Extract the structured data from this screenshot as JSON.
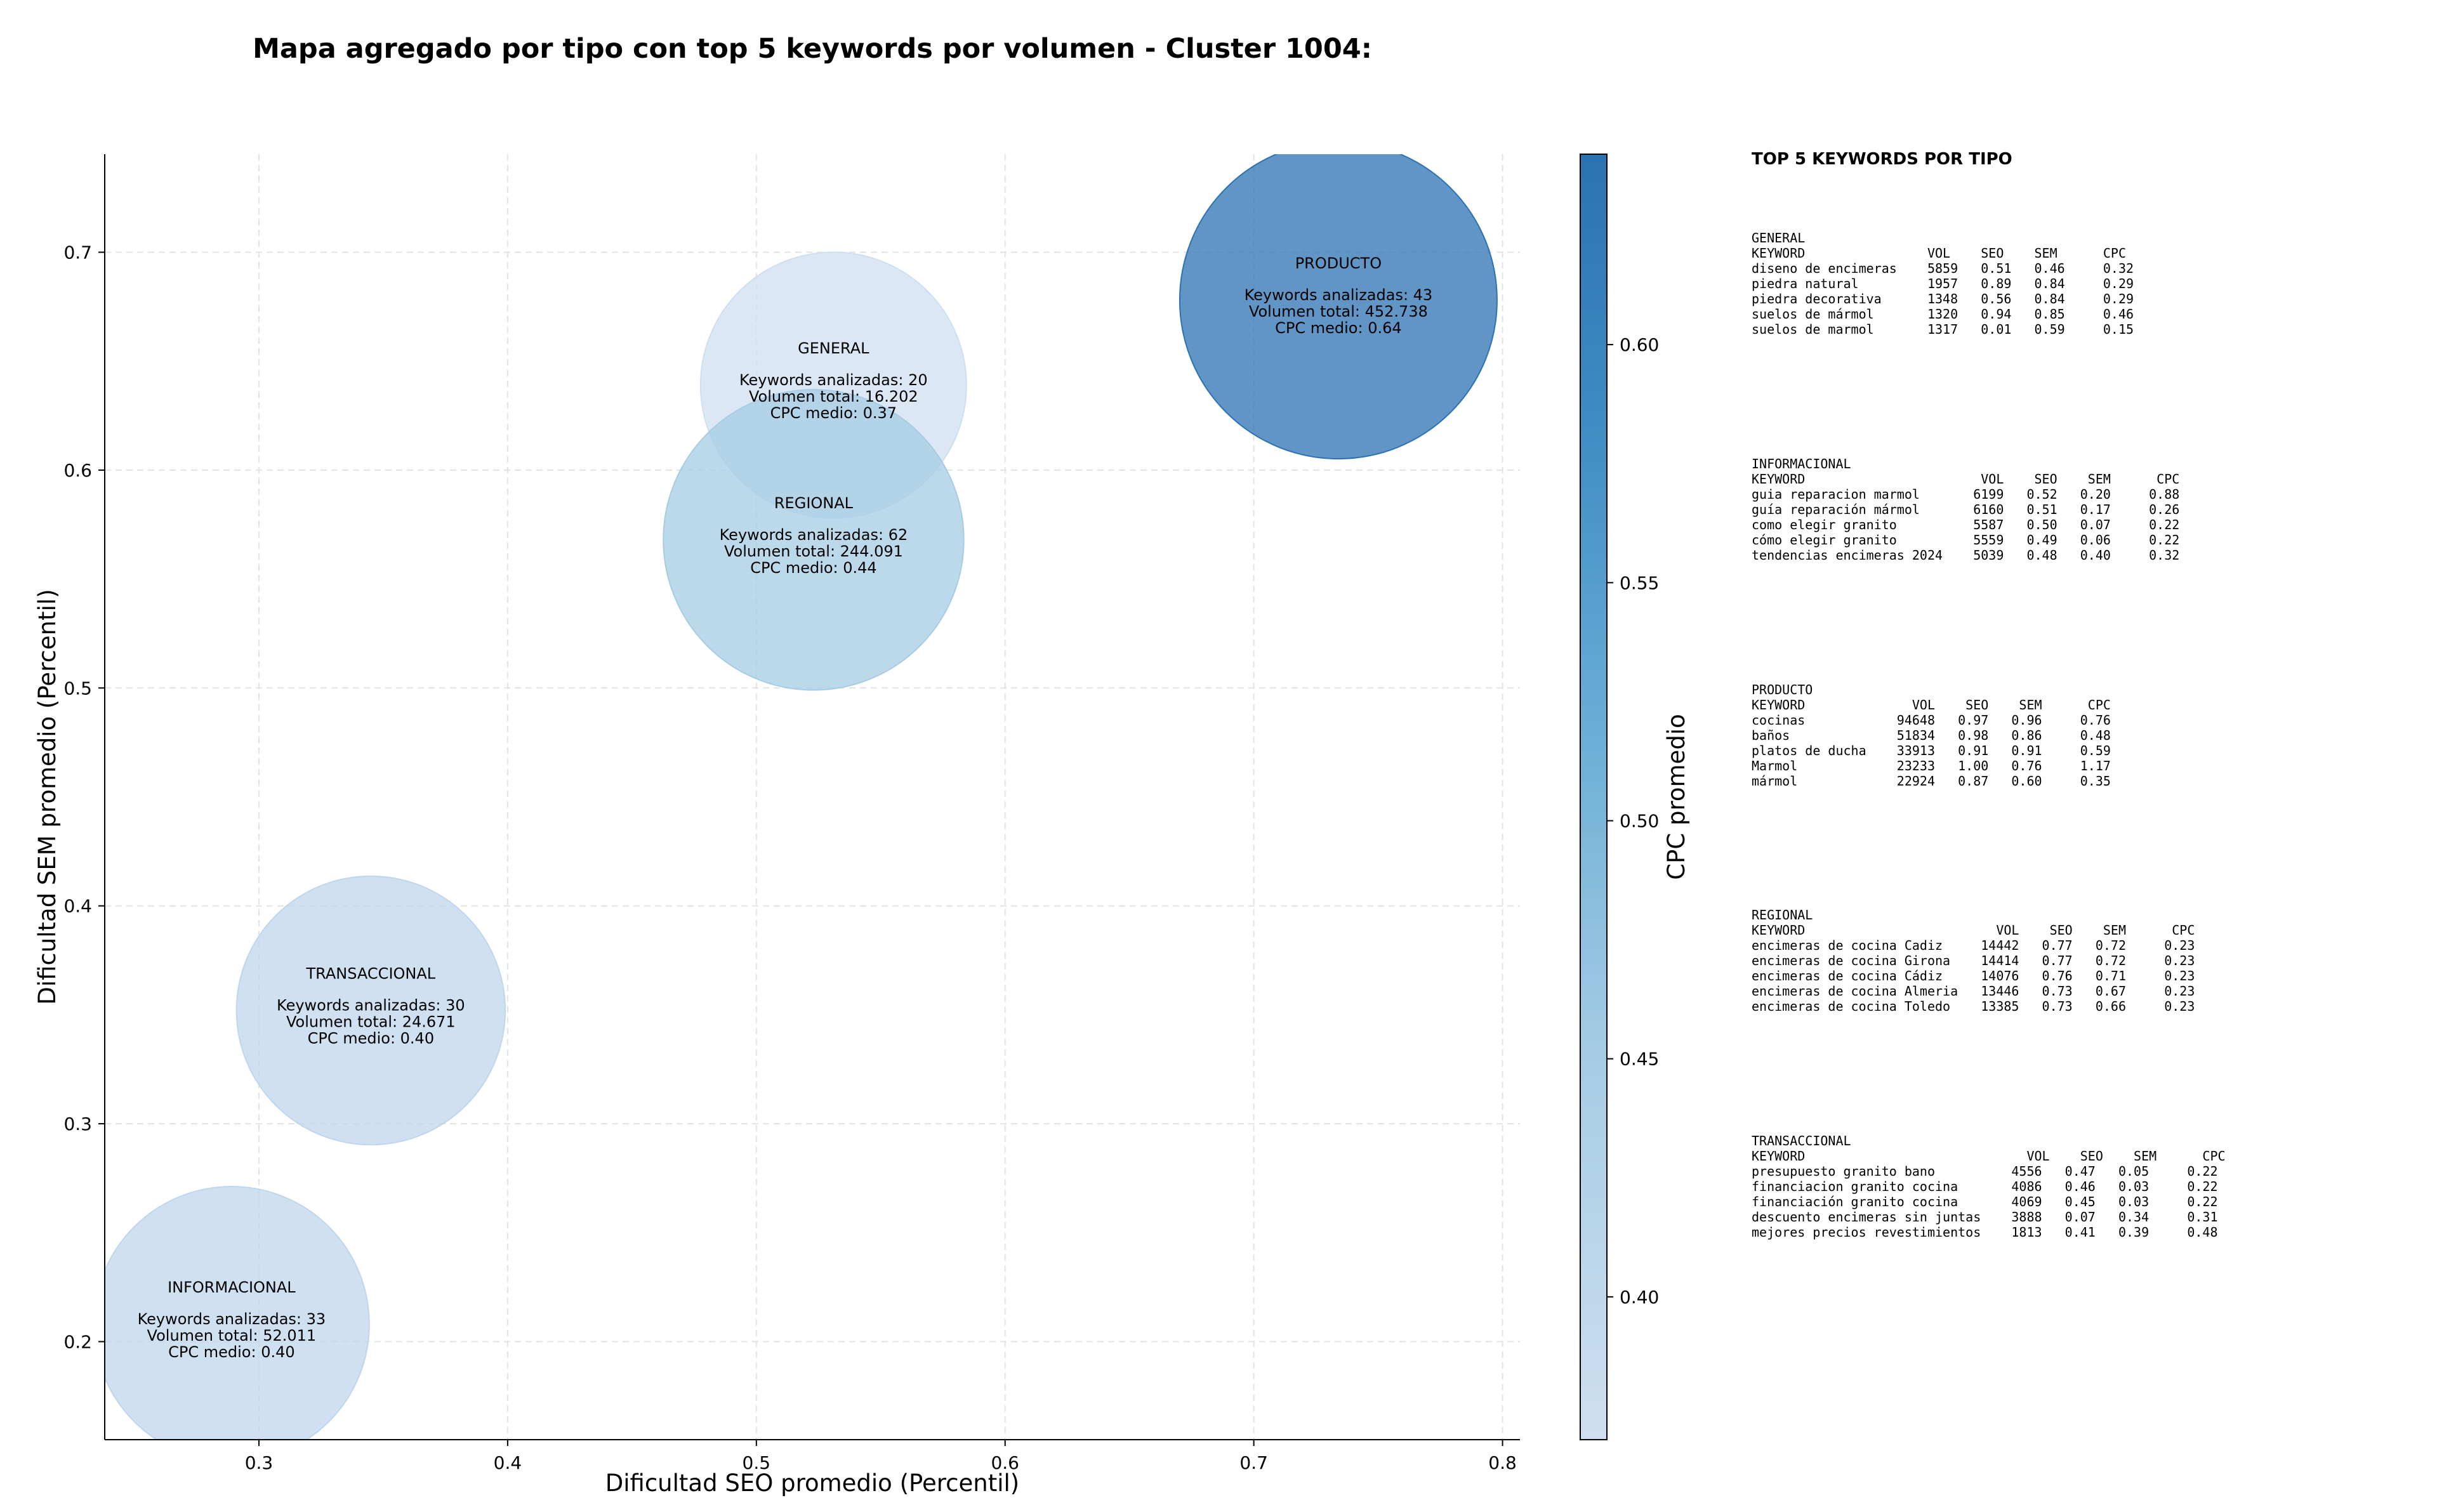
{
  "chart_data": {
    "type": "scatter",
    "title": "Mapa agregado por tipo con top 5 keywords por volumen - Cluster 1004:",
    "xlabel": "Dificultad SEO promedio (Percentil)",
    "ylabel": "Dificultad SEM promedio (Percentil)",
    "xlim": [
      0.238,
      0.807
    ],
    "ylim": [
      0.155,
      0.745
    ],
    "xticks": [
      0.3,
      0.4,
      0.5,
      0.6,
      0.7,
      0.8
    ],
    "yticks": [
      0.2,
      0.3,
      0.4,
      0.5,
      0.6,
      0.7
    ],
    "grid": true,
    "colorbar": {
      "label": "CPC promedio",
      "range": [
        0.37,
        0.64
      ],
      "ticks": [
        0.4,
        0.45,
        0.5,
        0.55,
        0.6
      ],
      "colormap": [
        "#cfdff0",
        "#a6cce4",
        "#6aaed6",
        "#3c8bc3",
        "#2c72b3"
      ]
    },
    "points": [
      {
        "name": "GENERAL",
        "x": 0.531,
        "y": 0.639,
        "keywords_label": "Keywords analizadas: 20",
        "volume_label": "Volumen total: 16.202",
        "cpc_label": "CPC medio: 0.37",
        "volume": 16202,
        "cpc": 0.37,
        "color": "#cfdff0"
      },
      {
        "name": "REGIONAL",
        "x": 0.523,
        "y": 0.568,
        "keywords_label": "Keywords analizadas: 62",
        "volume_label": "Volumen total: 244.091",
        "cpc_label": "CPC medio: 0.44",
        "volume": 244091,
        "cpc": 0.44,
        "color": "#a6cce4"
      },
      {
        "name": "PRODUCTO",
        "x": 0.734,
        "y": 0.678,
        "keywords_label": "Keywords analizadas: 43",
        "volume_label": "Volumen total: 452.738",
        "cpc_label": "CPC medio: 0.64",
        "volume": 452738,
        "cpc": 0.64,
        "color": "#2c72b3"
      },
      {
        "name": "TRANSACCIONAL",
        "x": 0.345,
        "y": 0.352,
        "keywords_label": "Keywords analizadas: 30",
        "volume_label": "Volumen total: 24.671",
        "cpc_label": "CPC medio: 0.40",
        "volume": 24671,
        "cpc": 0.4,
        "color": "#bfd6ec"
      },
      {
        "name": "INFORMACIONAL",
        "x": 0.289,
        "y": 0.208,
        "keywords_label": "Keywords analizadas: 33",
        "volume_label": "Volumen total: 52.011",
        "cpc_label": "CPC medio: 0.40",
        "volume": 52011,
        "cpc": 0.4,
        "color": "#bfd6ec"
      }
    ]
  },
  "side_panel": {
    "heading": "TOP 5 KEYWORDS POR TIPO",
    "blocks": [
      {
        "name": "GENERAL",
        "header": "KEYWORD                VOL    SEO    SEM      CPC",
        "rows": [
          "diseno de encimeras    5859   0.51   0.46     0.32",
          "piedra natural         1957   0.89   0.84     0.29",
          "piedra decorativa      1348   0.56   0.84     0.29",
          "suelos de mármol       1320   0.94   0.85     0.46",
          "suelos de marmol       1317   0.01   0.59     0.15"
        ]
      },
      {
        "name": "INFORMACIONAL",
        "header": "KEYWORD                       VOL    SEO    SEM      CPC",
        "rows": [
          "guia reparacion marmol       6199   0.52   0.20     0.88",
          "guía reparación mármol       6160   0.51   0.17     0.26",
          "como elegir granito          5587   0.50   0.07     0.22",
          "cómo elegir granito          5559   0.49   0.06     0.22",
          "tendencias encimeras 2024    5039   0.48   0.40     0.32"
        ]
      },
      {
        "name": "PRODUCTO",
        "header": "KEYWORD              VOL    SEO    SEM      CPC",
        "rows": [
          "cocinas            94648   0.97   0.96     0.76",
          "baños              51834   0.98   0.86     0.48",
          "platos de ducha    33913   0.91   0.91     0.59",
          "Marmol             23233   1.00   0.76     1.17",
          "mármol             22924   0.87   0.60     0.35"
        ]
      },
      {
        "name": "REGIONAL",
        "header": "KEYWORD                         VOL    SEO    SEM      CPC",
        "rows": [
          "encimeras de cocina Cadiz     14442   0.77   0.72     0.23",
          "encimeras de cocina Girona    14414   0.77   0.72     0.23",
          "encimeras de cocina Cádiz     14076   0.76   0.71     0.23",
          "encimeras de cocina Almeria   13446   0.73   0.67     0.23",
          "encimeras de cocina Toledo    13385   0.73   0.66     0.23"
        ]
      },
      {
        "name": "TRANSACCIONAL",
        "header": "KEYWORD                             VOL    SEO    SEM      CPC",
        "rows": [
          "presupuesto granito bano          4556   0.47   0.05     0.22",
          "financiacion granito cocina       4086   0.46   0.03     0.22",
          "financiación granito cocina       4069   0.45   0.03     0.22",
          "descuento encimeras sin juntas    3888   0.07   0.34     0.31",
          "mejores precios revestimientos    1813   0.41   0.39     0.48"
        ]
      }
    ]
  }
}
